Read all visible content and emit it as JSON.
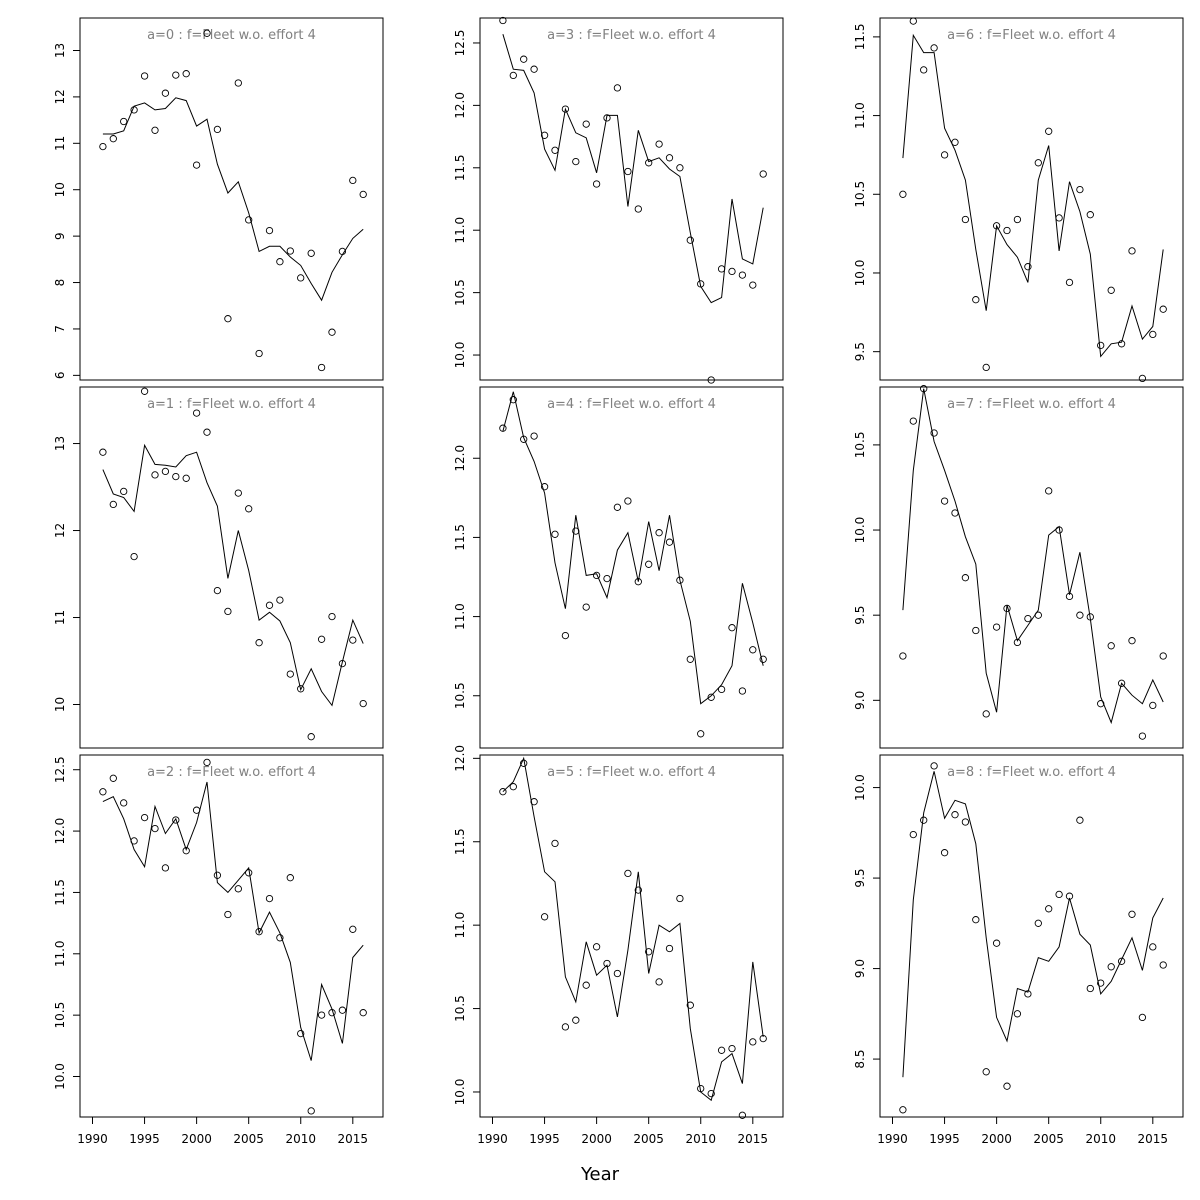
{
  "chart_data": {
    "type": "scatter",
    "xlabel": "Year",
    "years": [
      1991,
      1992,
      1993,
      1994,
      1995,
      1996,
      1997,
      1998,
      1999,
      2000,
      2001,
      2002,
      2003,
      2004,
      2005,
      2006,
      2007,
      2008,
      2009,
      2010,
      2011,
      2012,
      2013,
      2014,
      2015,
      2016
    ],
    "xticks": [
      1990,
      1995,
      2000,
      2005,
      2010,
      2015
    ],
    "xlim": [
      1988.8,
      2017.9
    ],
    "panels": [
      {
        "title": "a=0  :  f=Fleet w.o. effort 4",
        "ylim": [
          5.9,
          13.7
        ],
        "yticks": [
          6,
          7,
          8,
          9,
          10,
          11,
          12,
          13
        ],
        "observed": [
          10.93,
          11.1,
          11.47,
          11.72,
          12.45,
          11.28,
          12.08,
          12.47,
          12.5,
          10.53,
          13.37,
          11.3,
          7.22,
          12.3,
          9.35,
          6.47,
          9.12,
          8.45,
          8.68,
          8.1,
          8.63,
          6.17,
          6.93,
          8.67,
          10.2,
          9.9
        ],
        "fitted": [
          11.2,
          11.2,
          11.27,
          11.8,
          11.87,
          11.72,
          11.75,
          11.98,
          11.92,
          11.37,
          11.52,
          10.55,
          9.93,
          10.17,
          9.5,
          8.67,
          8.78,
          8.78,
          8.55,
          8.37,
          7.98,
          7.62,
          8.22,
          8.6,
          8.95,
          9.15
        ]
      },
      {
        "title": "a=3  :  f=Fleet w.o. effort 4",
        "ylim": [
          9.8,
          12.7
        ],
        "yticks": [
          10.0,
          10.5,
          11.0,
          11.5,
          12.0,
          12.5
        ],
        "observed": [
          12.68,
          12.24,
          12.37,
          12.29,
          11.76,
          11.64,
          11.97,
          11.55,
          11.85,
          11.37,
          11.9,
          12.14,
          11.47,
          11.17,
          11.54,
          11.69,
          11.58,
          11.5,
          10.92,
          10.57,
          9.8,
          10.69,
          10.67,
          10.64,
          10.56,
          11.45
        ],
        "fitted": [
          12.57,
          12.29,
          12.28,
          12.1,
          11.65,
          11.48,
          11.97,
          11.78,
          11.74,
          11.46,
          11.92,
          11.92,
          11.19,
          11.8,
          11.55,
          11.58,
          11.49,
          11.43,
          10.98,
          10.55,
          10.42,
          10.46,
          11.25,
          10.77,
          10.73,
          11.18
        ]
      },
      {
        "title": "a=6  :  f=Fleet w.o. effort 4",
        "ylim": [
          9.32,
          11.62
        ],
        "yticks": [
          9.5,
          10.0,
          10.5,
          11.0,
          11.5
        ],
        "observed": [
          10.5,
          11.6,
          11.29,
          11.43,
          10.75,
          10.83,
          10.34,
          9.83,
          9.4,
          10.3,
          10.27,
          10.34,
          10.04,
          10.7,
          10.9,
          10.35,
          9.94,
          10.53,
          10.37,
          9.54,
          9.89,
          9.55,
          10.14,
          9.33,
          9.61,
          9.77
        ],
        "fitted": [
          10.73,
          11.51,
          11.4,
          11.4,
          10.92,
          10.78,
          10.59,
          10.15,
          9.76,
          10.3,
          10.18,
          10.1,
          9.94,
          10.59,
          10.81,
          10.14,
          10.58,
          10.39,
          10.12,
          9.47,
          9.55,
          9.56,
          9.79,
          9.58,
          9.66,
          10.15
        ]
      },
      {
        "title": "a=1  :  f=Fleet w.o. effort 4",
        "ylim": [
          9.5,
          13.65
        ],
        "yticks": [
          10,
          11,
          12,
          13
        ],
        "observed": [
          12.9,
          12.3,
          12.45,
          11.7,
          13.6,
          12.64,
          12.68,
          12.62,
          12.6,
          13.35,
          13.13,
          11.31,
          11.07,
          12.43,
          12.25,
          10.71,
          11.14,
          11.2,
          10.35,
          10.18,
          9.63,
          10.75,
          11.01,
          10.47,
          10.74,
          10.01
        ],
        "fitted": [
          12.7,
          12.42,
          12.38,
          12.22,
          12.98,
          12.76,
          12.75,
          12.73,
          12.86,
          12.9,
          12.55,
          12.28,
          11.45,
          12.0,
          11.54,
          10.97,
          11.06,
          10.96,
          10.71,
          10.17,
          10.41,
          10.15,
          9.99,
          10.49,
          10.97,
          10.7
        ]
      },
      {
        "title": "a=4  :  f=Fleet w.o. effort 4",
        "ylim": [
          10.17,
          12.45
        ],
        "yticks": [
          10.5,
          11.0,
          11.5,
          12.0
        ],
        "observed": [
          12.19,
          12.37,
          12.12,
          12.14,
          11.82,
          11.52,
          10.88,
          11.54,
          11.06,
          11.26,
          11.24,
          11.69,
          11.73,
          11.22,
          11.33,
          11.53,
          11.47,
          11.23,
          10.73,
          10.26,
          10.49,
          10.54,
          10.93,
          10.53,
          10.79,
          10.73
        ],
        "fitted": [
          12.17,
          12.42,
          12.13,
          11.98,
          11.78,
          11.34,
          11.05,
          11.64,
          11.26,
          11.27,
          11.12,
          11.42,
          11.53,
          11.22,
          11.6,
          11.29,
          11.64,
          11.23,
          10.97,
          10.45,
          10.5,
          10.57,
          10.69,
          11.21,
          10.96,
          10.69
        ]
      },
      {
        "title": "a=7  :  f=Fleet w.o. effort 4",
        "ylim": [
          8.72,
          10.84
        ],
        "yticks": [
          9.0,
          9.5,
          10.0,
          10.5
        ],
        "observed": [
          9.26,
          10.64,
          10.83,
          10.57,
          10.17,
          10.1,
          9.72,
          9.41,
          8.92,
          9.43,
          9.54,
          9.34,
          9.48,
          9.5,
          10.23,
          10.0,
          9.61,
          9.5,
          9.49,
          8.98,
          9.32,
          9.1,
          9.35,
          8.79,
          8.97,
          9.26
        ],
        "fitted": [
          9.53,
          10.35,
          10.83,
          10.52,
          10.35,
          10.17,
          9.96,
          9.8,
          9.16,
          8.93,
          9.56,
          9.35,
          9.44,
          9.53,
          9.97,
          10.02,
          9.62,
          9.87,
          9.48,
          9.02,
          8.87,
          9.1,
          9.03,
          8.98,
          9.12,
          8.99
        ]
      },
      {
        "title": "a=2  :  f=Fleet w.o. effort 4",
        "ylim": [
          9.67,
          12.62
        ],
        "yticks": [
          10.0,
          10.5,
          11.0,
          11.5,
          12.0,
          12.5
        ],
        "observed": [
          12.32,
          12.43,
          12.23,
          11.92,
          12.11,
          12.02,
          11.7,
          12.09,
          11.84,
          12.17,
          12.56,
          11.64,
          11.32,
          11.53,
          11.66,
          11.18,
          11.45,
          11.13,
          11.62,
          10.35,
          9.72,
          10.5,
          10.52,
          10.54,
          11.2,
          10.52
        ],
        "fitted": [
          12.24,
          12.28,
          12.1,
          11.85,
          11.71,
          12.2,
          11.98,
          12.1,
          11.85,
          12.07,
          12.4,
          11.58,
          11.5,
          11.6,
          11.7,
          11.17,
          11.34,
          11.17,
          10.93,
          10.4,
          10.13,
          10.75,
          10.55,
          10.27,
          10.97,
          11.07
        ]
      },
      {
        "title": "a=5  :  f=Fleet w.o. effort 4",
        "ylim": [
          9.85,
          12.02
        ],
        "yticks": [
          10.0,
          10.5,
          11.0,
          11.5,
          12.0
        ],
        "observed": [
          11.8,
          11.83,
          11.97,
          11.74,
          11.05,
          11.49,
          10.39,
          10.43,
          10.64,
          10.87,
          10.77,
          10.71,
          11.31,
          11.21,
          10.84,
          10.66,
          10.86,
          11.16,
          10.52,
          10.02,
          9.99,
          10.25,
          10.26,
          9.86,
          10.3,
          10.32
        ],
        "fitted": [
          11.8,
          11.86,
          12.0,
          11.65,
          11.32,
          11.26,
          10.69,
          10.54,
          10.9,
          10.7,
          10.76,
          10.45,
          10.85,
          11.32,
          10.71,
          11.0,
          10.96,
          11.01,
          10.38,
          10.0,
          9.95,
          10.18,
          10.23,
          10.05,
          10.78,
          10.33
        ]
      },
      {
        "title": "a=8  :  f=Fleet w.o. effort 4",
        "ylim": [
          8.18,
          10.18
        ],
        "yticks": [
          8.5,
          9.0,
          9.5,
          10.0
        ],
        "observed": [
          8.22,
          9.74,
          9.82,
          10.12,
          9.64,
          9.85,
          9.81,
          9.27,
          8.43,
          9.14,
          8.35,
          8.75,
          8.86,
          9.25,
          9.33,
          9.41,
          9.4,
          9.82,
          8.89,
          8.92,
          9.01,
          9.04,
          9.3,
          8.73,
          9.12,
          9.02
        ],
        "fitted": [
          8.4,
          9.38,
          9.86,
          10.09,
          9.83,
          9.93,
          9.91,
          9.69,
          9.17,
          8.73,
          8.6,
          8.89,
          8.87,
          9.06,
          9.04,
          9.12,
          9.39,
          9.19,
          9.13,
          8.86,
          8.93,
          9.05,
          9.17,
          8.99,
          9.28,
          9.39
        ]
      }
    ]
  }
}
